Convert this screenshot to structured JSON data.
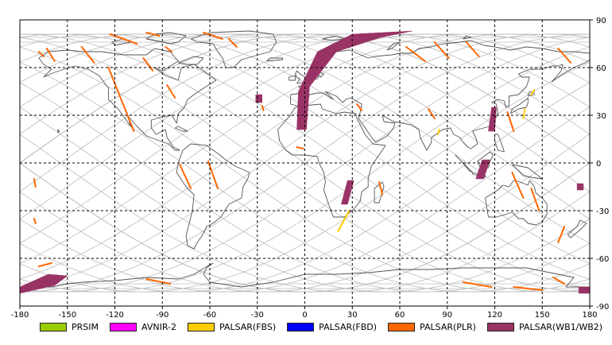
{
  "map": {
    "x_ticks": [
      "-180",
      "-150",
      "-120",
      "-90",
      "-60",
      "-30",
      "0",
      "30",
      "60",
      "90",
      "120",
      "150",
      "180"
    ],
    "y_ticks": [
      "90",
      "60",
      "30",
      "0",
      "-30",
      "-60",
      "-90"
    ],
    "x_range": [
      -180,
      180
    ],
    "y_range": [
      -90,
      90
    ],
    "grid": "dashed",
    "background": "#ffffff",
    "coastline_color": "#555555",
    "orbit_track_color": "#bbbbbb"
  },
  "legend": [
    {
      "label": "PRSIM",
      "color": "#99cc00"
    },
    {
      "label": "AVNIR-2",
      "color": "#ff00ff"
    },
    {
      "label": "PALSAR(FBS)",
      "color": "#ffcc00"
    },
    {
      "label": "PALSAR(FBD)",
      "color": "#0000ff"
    },
    {
      "label": "PALSAR(PLR)",
      "color": "#ff6600"
    },
    {
      "label": "PALSAR(WB1/WB2)",
      "color": "#993366"
    }
  ],
  "footprints": [
    {
      "mode": "PALSAR(WB1/WB2)",
      "lonlat": [
        [
          -5,
          21
        ],
        [
          -4,
          45
        ],
        [
          8,
          70
        ],
        [
          30,
          81
        ],
        [
          68,
          83
        ],
        [
          48,
          79
        ],
        [
          20,
          70
        ],
        [
          3,
          48
        ],
        [
          1,
          21
        ]
      ]
    },
    {
      "mode": "PALSAR(WB1/WB2)",
      "lonlat": [
        [
          -31,
          43
        ],
        [
          -27,
          43
        ],
        [
          -27,
          38
        ],
        [
          -31,
          38
        ]
      ]
    },
    {
      "mode": "PALSAR(WB1/WB2)",
      "lonlat": [
        [
          23,
          -26
        ],
        [
          27,
          -26
        ],
        [
          31,
          -11
        ],
        [
          27,
          -11
        ]
      ]
    },
    {
      "mode": "PALSAR(WB1/WB2)",
      "lonlat": [
        [
          108,
          -10
        ],
        [
          113,
          -10
        ],
        [
          117,
          2
        ],
        [
          112,
          2
        ]
      ]
    },
    {
      "mode": "PALSAR(WB1/WB2)",
      "lonlat": [
        [
          116,
          20
        ],
        [
          120,
          20
        ],
        [
          121,
          35
        ],
        [
          118,
          35
        ]
      ]
    },
    {
      "mode": "PALSAR(WB1/WB2)",
      "lonlat": [
        [
          172,
          -17
        ],
        [
          176,
          -17
        ],
        [
          176,
          -13
        ],
        [
          172,
          -13
        ]
      ]
    },
    {
      "mode": "PALSAR(WB1/WB2)",
      "lonlat": [
        [
          -180,
          -82
        ],
        [
          -158,
          -77
        ],
        [
          -150,
          -71
        ],
        [
          -162,
          -70
        ],
        [
          -180,
          -78
        ]
      ]
    },
    {
      "mode": "PALSAR(WB1/WB2)",
      "lonlat": [
        [
          173,
          -82
        ],
        [
          180,
          -82
        ],
        [
          180,
          -78
        ],
        [
          173,
          -78
        ]
      ]
    },
    {
      "mode": "PALSAR(FBS)",
      "lonlat": [
        [
          21,
          -43
        ],
        [
          28,
          -30
        ]
      ]
    },
    {
      "mode": "PALSAR(FBS)",
      "lonlat": [
        [
          138,
          28
        ],
        [
          139,
          34
        ]
      ]
    },
    {
      "mode": "PALSAR(FBS)",
      "lonlat": [
        [
          84,
          18
        ],
        [
          85,
          21
        ]
      ]
    },
    {
      "mode": "PALSAR(FBS)",
      "lonlat": [
        [
          143,
          43
        ],
        [
          145,
          46
        ]
      ]
    },
    {
      "mode": "PALSAR(PLR)",
      "lonlat": [
        [
          -123,
          81
        ],
        [
          -106,
          75
        ]
      ]
    },
    {
      "mode": "PALSAR(PLR)",
      "lonlat": [
        [
          -100,
          82
        ],
        [
          -92,
          80
        ]
      ]
    },
    {
      "mode": "PALSAR(PLR)",
      "lonlat": [
        [
          -88,
          73
        ],
        [
          -84,
          70
        ]
      ]
    },
    {
      "mode": "PALSAR(PLR)",
      "lonlat": [
        [
          -64,
          82
        ],
        [
          -52,
          78
        ]
      ]
    },
    {
      "mode": "PALSAR(PLR)",
      "lonlat": [
        [
          -48,
          78
        ],
        [
          -43,
          73
        ]
      ]
    },
    {
      "mode": "PALSAR(PLR)",
      "lonlat": [
        [
          -163,
          72
        ],
        [
          -158,
          64
        ]
      ]
    },
    {
      "mode": "PALSAR(PLR)",
      "lonlat": [
        [
          -141,
          73
        ],
        [
          -133,
          63
        ]
      ]
    },
    {
      "mode": "PALSAR(PLR)",
      "lonlat": [
        [
          -168,
          70
        ],
        [
          -165,
          67
        ]
      ]
    },
    {
      "mode": "PALSAR(PLR)",
      "lonlat": [
        [
          -124,
          60
        ],
        [
          -108,
          20
        ]
      ]
    },
    {
      "mode": "PALSAR(PLR)",
      "lonlat": [
        [
          -102,
          66
        ],
        [
          -96,
          58
        ]
      ]
    },
    {
      "mode": "PALSAR(PLR)",
      "lonlat": [
        [
          -87,
          49
        ],
        [
          -82,
          41
        ]
      ]
    },
    {
      "mode": "PALSAR(PLR)",
      "lonlat": [
        [
          -79,
          -1
        ],
        [
          -72,
          -16
        ]
      ]
    },
    {
      "mode": "PALSAR(PLR)",
      "lonlat": [
        [
          -61,
          1
        ],
        [
          -55,
          -16
        ]
      ]
    },
    {
      "mode": "PALSAR(PLR)",
      "lonlat": [
        [
          -171,
          -10
        ],
        [
          -170,
          -15
        ]
      ]
    },
    {
      "mode": "PALSAR(PLR)",
      "lonlat": [
        [
          -171,
          -35
        ],
        [
          -170,
          -38
        ]
      ]
    },
    {
      "mode": "PALSAR(PLR)",
      "lonlat": [
        [
          -27,
          36
        ],
        [
          -26,
          33
        ]
      ]
    },
    {
      "mode": "PALSAR(PLR)",
      "lonlat": [
        [
          -5,
          10
        ],
        [
          -1,
          9
        ]
      ]
    },
    {
      "mode": "PALSAR(PLR)",
      "lonlat": [
        [
          33,
          37
        ],
        [
          36,
          33
        ]
      ]
    },
    {
      "mode": "PALSAR(PLR)",
      "lonlat": [
        [
          47,
          -12
        ],
        [
          49,
          -20
        ]
      ]
    },
    {
      "mode": "PALSAR(PLR)",
      "lonlat": [
        [
          64,
          73
        ],
        [
          76,
          64
        ]
      ]
    },
    {
      "mode": "PALSAR(PLR)",
      "lonlat": [
        [
          82,
          76
        ],
        [
          91,
          66
        ]
      ]
    },
    {
      "mode": "PALSAR(PLR)",
      "lonlat": [
        [
          102,
          76
        ],
        [
          110,
          67
        ]
      ]
    },
    {
      "mode": "PALSAR(PLR)",
      "lonlat": [
        [
          160,
          72
        ],
        [
          168,
          63
        ]
      ]
    },
    {
      "mode": "PALSAR(PLR)",
      "lonlat": [
        [
          128,
          32
        ],
        [
          132,
          20
        ]
      ]
    },
    {
      "mode": "PALSAR(PLR)",
      "lonlat": [
        [
          78,
          34
        ],
        [
          82,
          28
        ]
      ]
    },
    {
      "mode": "PALSAR(PLR)",
      "lonlat": [
        [
          131,
          -6
        ],
        [
          138,
          -22
        ]
      ]
    },
    {
      "mode": "PALSAR(PLR)",
      "lonlat": [
        [
          143,
          -16
        ],
        [
          148,
          -30
        ]
      ]
    },
    {
      "mode": "PALSAR(PLR)",
      "lonlat": [
        [
          160,
          -50
        ],
        [
          164,
          -40
        ]
      ]
    },
    {
      "mode": "PALSAR(PLR)",
      "lonlat": [
        [
          100,
          -75
        ],
        [
          118,
          -78
        ]
      ]
    },
    {
      "mode": "PALSAR(PLR)",
      "lonlat": [
        [
          132,
          -78
        ],
        [
          150,
          -80
        ]
      ]
    },
    {
      "mode": "PALSAR(PLR)",
      "lonlat": [
        [
          -100,
          -73
        ],
        [
          -85,
          -76
        ]
      ]
    },
    {
      "mode": "PALSAR(PLR)",
      "lonlat": [
        [
          -168,
          -65
        ],
        [
          -160,
          -63
        ]
      ]
    },
    {
      "mode": "PALSAR(PLR)",
      "lonlat": [
        [
          157,
          -72
        ],
        [
          164,
          -76
        ]
      ]
    }
  ]
}
